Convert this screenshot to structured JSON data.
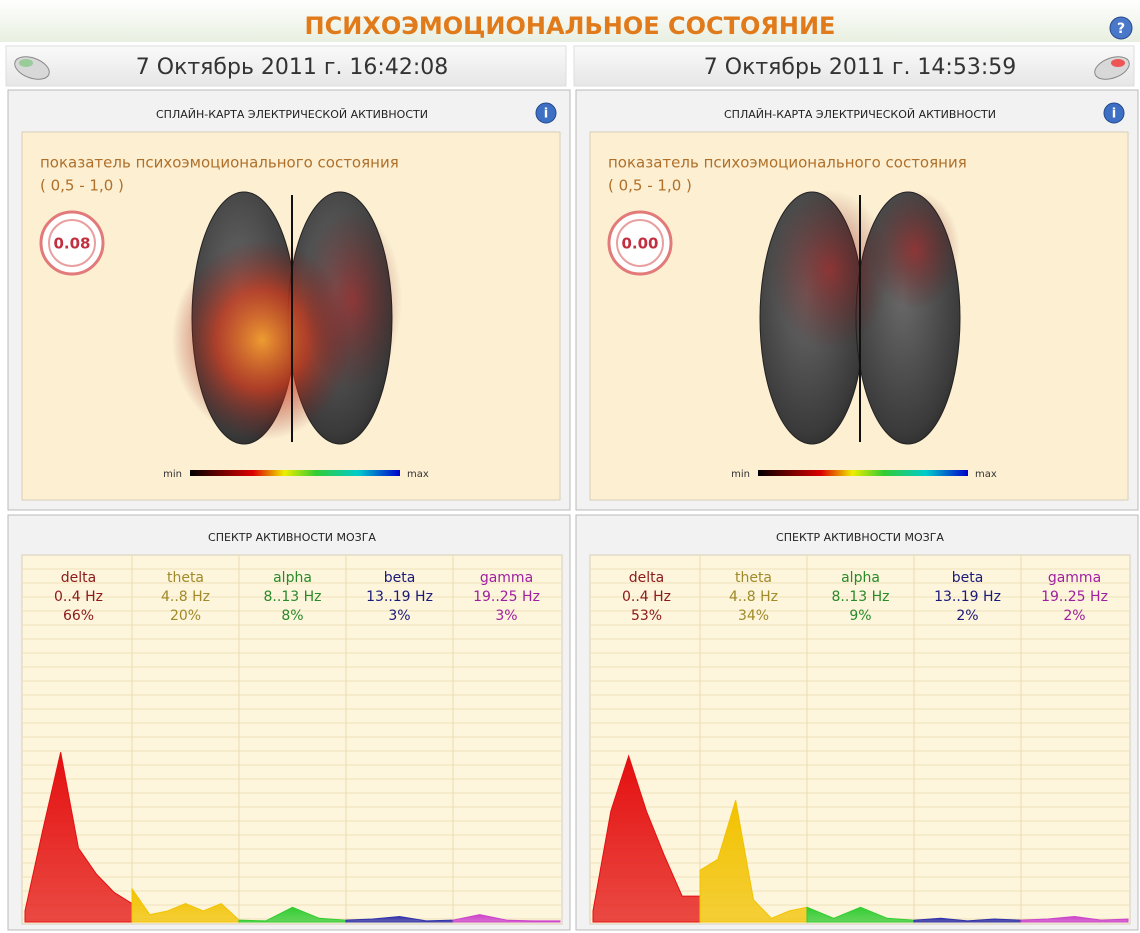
{
  "header": {
    "title": "ПСИХОЭМОЦИОНАЛЬНОЕ СОСТОЯНИЕ"
  },
  "sessions": [
    {
      "datetime": "7 Октябрь 2011 г. 16:42:08",
      "brain_map": {
        "title": "СПЛАЙН-КАРТА ЭЛЕКТРИЧЕСКОЙ АКТИВНОСТИ",
        "indicator_label": "показатель психоэмоционального состояния",
        "range": "( 0,5 - 1,0 )",
        "value": "0.08",
        "scale_min": "min",
        "scale_max": "max"
      },
      "spectrum": {
        "title": "СПЕКТР АКТИВНОСТИ МОЗГА",
        "type": "area",
        "ylim": [
          0,
          100
        ],
        "bands": [
          {
            "name": "delta",
            "range": "0..4 Hz",
            "share": "66%",
            "color": "#e41010",
            "values": [
              3,
              25,
              46,
              20,
              13,
              8,
              5
            ]
          },
          {
            "name": "theta",
            "range": "4..8 Hz",
            "share": "20%",
            "color": "#f2c200",
            "values": [
              9,
              2,
              3,
              5,
              3,
              5,
              0.5
            ]
          },
          {
            "name": "alpha",
            "range": "8..13 Hz",
            "share": "8%",
            "color": "#33cc33",
            "values": [
              0.5,
              0.3,
              4,
              1,
              0.5
            ]
          },
          {
            "name": "beta",
            "range": "13..19 Hz",
            "share": "3%",
            "color": "#3333aa",
            "values": [
              0.5,
              0.8,
              1.5,
              0.3,
              0.5
            ]
          },
          {
            "name": "gamma",
            "range": "19..25 Hz",
            "share": "3%",
            "color": "#cc44cc",
            "values": [
              0.5,
              2,
              0.5,
              0.3,
              0.3
            ]
          }
        ]
      }
    },
    {
      "datetime": "7 Октябрь 2011 г. 14:53:59",
      "brain_map": {
        "title": "СПЛАЙН-КАРТА ЭЛЕКТРИЧЕСКОЙ АКТИВНОСТИ",
        "indicator_label": "показатель психоэмоционального состояния",
        "range": "( 0,5 - 1,0 )",
        "value": "0.00",
        "scale_min": "min",
        "scale_max": "max"
      },
      "spectrum": {
        "title": "СПЕКТР АКТИВНОСТИ МОЗГА",
        "type": "area",
        "ylim": [
          0,
          100
        ],
        "bands": [
          {
            "name": "delta",
            "range": "0..4 Hz",
            "share": "53%",
            "color": "#e41010",
            "values": [
              3,
              30,
              45,
              30,
              18,
              7,
              7
            ]
          },
          {
            "name": "theta",
            "range": "4..8 Hz",
            "share": "34%",
            "color": "#f2c200",
            "values": [
              14,
              17,
              33,
              6,
              1,
              3,
              4
            ]
          },
          {
            "name": "alpha",
            "range": "8..13 Hz",
            "share": "9%",
            "color": "#33cc33",
            "values": [
              4,
              1,
              4,
              1,
              0.5
            ]
          },
          {
            "name": "beta",
            "range": "13..19 Hz",
            "share": "2%",
            "color": "#3333aa",
            "values": [
              0.5,
              1,
              0.3,
              0.8,
              0.5
            ]
          },
          {
            "name": "gamma",
            "range": "19..25 Hz",
            "share": "2%",
            "color": "#cc44cc",
            "values": [
              0.5,
              0.8,
              1.5,
              0.5,
              0.8
            ]
          }
        ]
      }
    }
  ]
}
